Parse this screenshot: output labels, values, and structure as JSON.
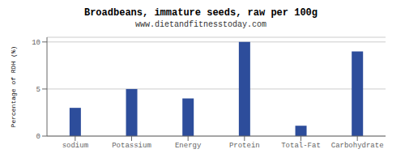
{
  "chart_data": {
    "type": "bar",
    "title": "Broadbeans, immature seeds, raw per 100g",
    "subtitle": "www.dietandfitnesstoday.com",
    "ylabel": "Percentage of RDH (%)",
    "categories": [
      "sodium",
      "Potassium",
      "Energy",
      "Protein",
      "Total-Fat",
      "Carbohydrate"
    ],
    "values": [
      3.0,
      5.0,
      4.0,
      10.0,
      1.1,
      9.0
    ],
    "color": "#2d4d9b",
    "ylim": [
      0,
      10.5
    ],
    "yticks": [
      0,
      5,
      10
    ],
    "grid": true
  }
}
